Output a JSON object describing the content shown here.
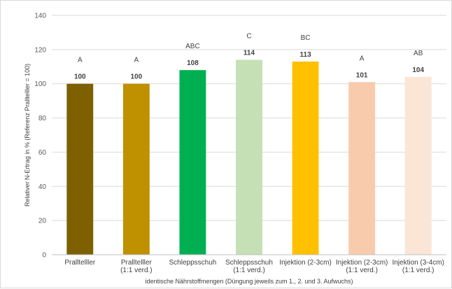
{
  "chart_data": {
    "type": "bar",
    "categories": [
      [
        "Pralltelller"
      ],
      [
        "Pralltelller",
        "(1:1 verd.)"
      ],
      [
        "Schleppsschuh"
      ],
      [
        "Schleppsschuh",
        "(1:1 verd.)"
      ],
      [
        "Injektion (2-3cm)"
      ],
      [
        "Injektion (2-3cm)",
        "(1:1 verd.)"
      ],
      [
        "Injektion (3-4cm)",
        "(1:1 verd.)"
      ]
    ],
    "values": [
      100,
      100,
      108,
      114,
      113,
      101,
      104
    ],
    "value_labels": [
      "100",
      "100",
      "108",
      "114",
      "113",
      "101",
      "104"
    ],
    "group_letters": [
      "A",
      "A",
      "ABC",
      "C",
      "BC",
      "A",
      "AB"
    ],
    "colors": [
      "#7f6000",
      "#bf9000",
      "#00b050",
      "#c5e0b4",
      "#ffc000",
      "#f8cbad",
      "#fbe5d6"
    ],
    "ylim": [
      0,
      140
    ],
    "yticks": [
      0,
      20,
      40,
      60,
      80,
      100,
      120,
      140
    ],
    "ylabel": "Relativer N-Ertrag in % (Referenz Pralltelller = 100)",
    "xlabel": "identische Nährstoffmengen (Düngung jeweils zum 1., 2. und 3. Aufwuchs)",
    "grid": true,
    "gridColor": "#d9d9d9",
    "axisColor": "#bfbfbf"
  }
}
